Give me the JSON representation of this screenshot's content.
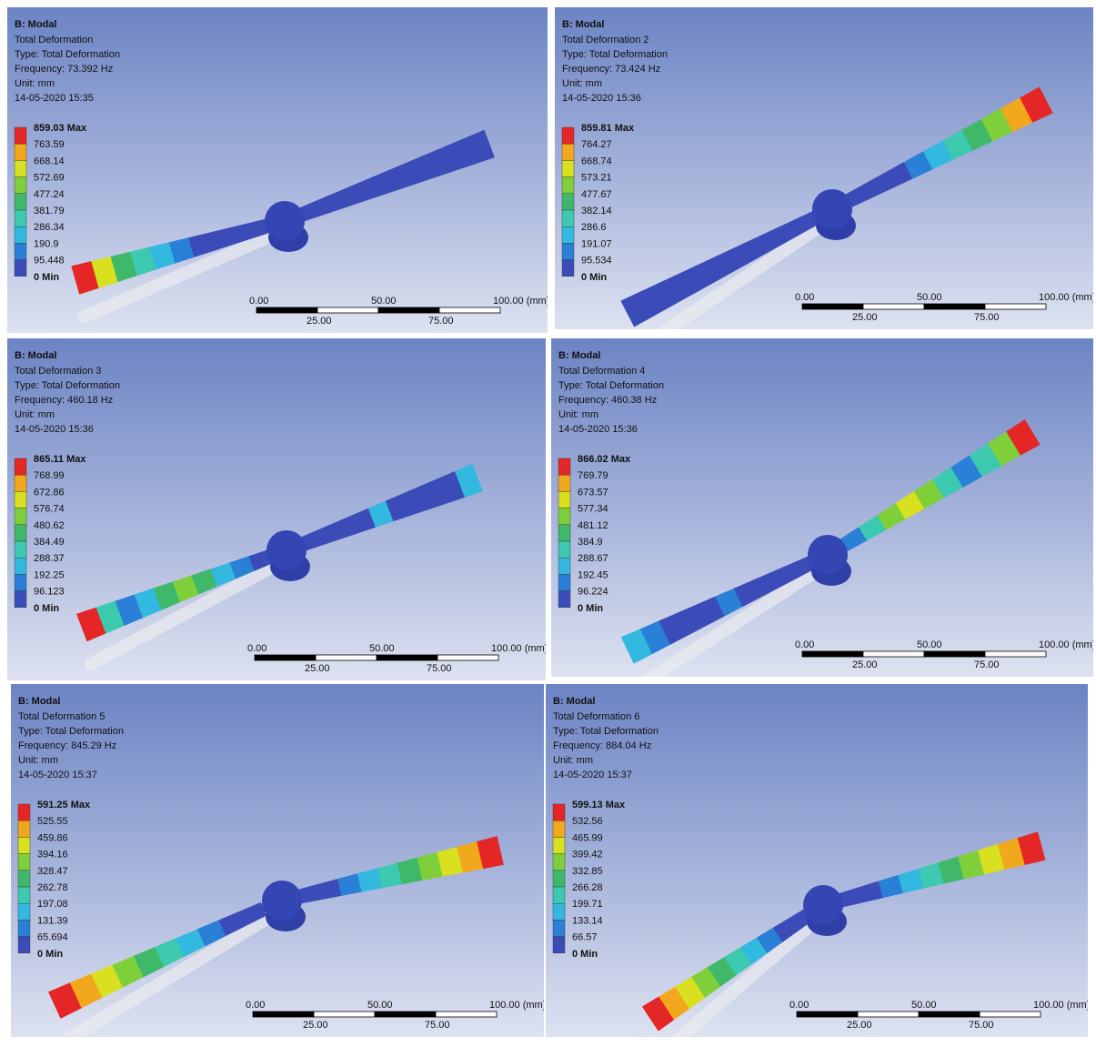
{
  "panels": [
    {
      "title": "B: Modal",
      "lines": [
        "Total Deformation",
        "Type: Total Deformation",
        "Frequency: 73.392 Hz",
        "Unit: mm",
        "14-05-2020 15:35"
      ],
      "legend": [
        "859.03 Max",
        "763.59",
        "668.14",
        "572.69",
        "477.24",
        "381.79",
        "286.34",
        "190.9",
        "95.448",
        "0 Min"
      ],
      "scale_top": [
        "0.00",
        "50.00",
        "100.00 (mm)"
      ],
      "scale_bottom": [
        "25.00",
        "75.00"
      ]
    },
    {
      "title": "B: Modal",
      "lines": [
        "Total Deformation 2",
        "Type: Total Deformation",
        "Frequency: 73.424 Hz",
        "Unit: mm",
        "14-05-2020 15:36"
      ],
      "legend": [
        "859.81 Max",
        "764.27",
        "668.74",
        "573.21",
        "477.67",
        "382.14",
        "286.6",
        "191.07",
        "95.534",
        "0 Min"
      ],
      "scale_top": [
        "0.00",
        "50.00",
        "100.00 (mm)"
      ],
      "scale_bottom": [
        "25.00",
        "75.00"
      ]
    },
    {
      "title": "B: Modal",
      "lines": [
        "Total Deformation 3",
        "Type: Total Deformation",
        "Frequency: 460.18 Hz",
        "Unit: mm",
        "14-05-2020 15:36"
      ],
      "legend": [
        "865.11 Max",
        "768.99",
        "672.86",
        "576.74",
        "480.62",
        "384.49",
        "288.37",
        "192.25",
        "96.123",
        "0 Min"
      ],
      "scale_top": [
        "0.00",
        "50.00",
        "100.00 (mm)"
      ],
      "scale_bottom": [
        "25.00",
        "75.00"
      ]
    },
    {
      "title": "B: Modal",
      "lines": [
        "Total Deformation 4",
        "Type: Total Deformation",
        "Frequency: 460.38 Hz",
        "Unit: mm",
        "14-05-2020 15:36"
      ],
      "legend": [
        "866.02 Max",
        "769.79",
        "673.57",
        "577.34",
        "481.12",
        "384.9",
        "288.67",
        "192.45",
        "96.224",
        "0 Min"
      ],
      "scale_top": [
        "0.00",
        "50.00",
        "100.00 (mm)"
      ],
      "scale_bottom": [
        "25.00",
        "75.00"
      ]
    },
    {
      "title": "B: Modal",
      "lines": [
        "Total Deformation 5",
        "Type: Total Deformation",
        "Frequency: 845.29 Hz",
        "Unit: mm",
        "14-05-2020 15:37"
      ],
      "legend": [
        "591.25 Max",
        "525.55",
        "459.86",
        "394.16",
        "328.47",
        "262.78",
        "197.08",
        "131.39",
        "65.694",
        "0 Min"
      ],
      "scale_top": [
        "0.00",
        "50.00",
        "100.00 (mm)"
      ],
      "scale_bottom": [
        "25.00",
        "75.00"
      ]
    },
    {
      "title": "B: Modal",
      "lines": [
        "Total Deformation 6",
        "Type: Total Deformation",
        "Frequency: 884.04 Hz",
        "Unit: mm",
        "14-05-2020 15:37"
      ],
      "legend": [
        "599.13 Max",
        "532.56",
        "465.99",
        "399.42",
        "332.85",
        "266.28",
        "199.71",
        "133.14",
        "66.57",
        "0 Min"
      ],
      "scale_top": [
        "0.00",
        "50.00",
        "100.00 (mm)"
      ],
      "scale_bottom": [
        "25.00",
        "75.00"
      ]
    }
  ]
}
